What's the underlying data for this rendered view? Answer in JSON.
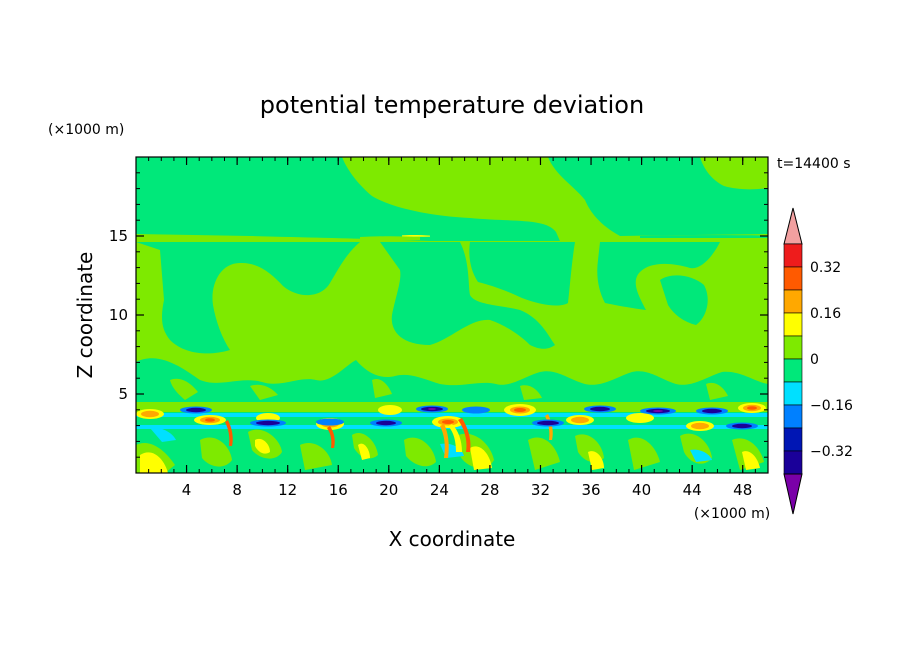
{
  "chart_data": {
    "type": "heatmap",
    "title": "potential temperature deviation",
    "xlabel": "X coordinate",
    "ylabel": "Z coordinate",
    "x_unit": "(×1000 m)",
    "z_unit": "(×1000 m)",
    "time_label": "t=14400 s",
    "xlim": [
      0,
      50
    ],
    "zlim": [
      0,
      20
    ],
    "x_ticks": [
      4,
      8,
      12,
      16,
      20,
      24,
      28,
      32,
      36,
      40,
      44,
      48
    ],
    "z_ticks": [
      5,
      10,
      15
    ],
    "colorbar": {
      "levels": [
        -0.4,
        -0.32,
        -0.24,
        -0.16,
        -0.08,
        0,
        0.08,
        0.16,
        0.24,
        0.32,
        0.4
      ],
      "colors": [
        "#7a00a8",
        "#1a0099",
        "#0016b4",
        "#0080ff",
        "#00e0ff",
        "#00e87a",
        "#7eea00",
        "#ffff00",
        "#ffa800",
        "#ff5a00",
        "#ee1c1c",
        "#f2a0a0"
      ],
      "tick_labels": [
        "0.32",
        "0.16",
        "0",
        "−0.16",
        "−0.32"
      ]
    },
    "field_regions": [
      {
        "level": "0 to 0.08",
        "zone": "upper background, z 4.5–20 km"
      },
      {
        "level": "-0.08 to 0",
        "zone": "large patches, z 5–20 km"
      },
      {
        "level": "-0.4 to 0.4",
        "zone": "turbulent mixed layer, z 0–4.5 km"
      }
    ]
  }
}
